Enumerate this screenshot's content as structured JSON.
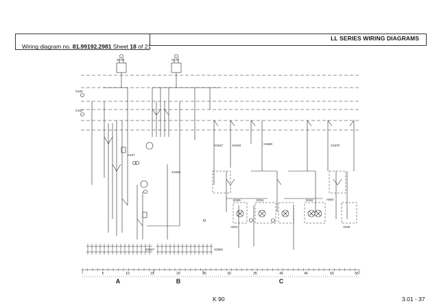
{
  "header": {
    "series_title": "LL SERIES WIRING DIAGRAMS",
    "diagram_prefix": "Wiring diagram no.",
    "diagram_number": "81.99192.2981",
    "sheet_prefix": "Sheet",
    "sheet_number": "18",
    "sheet_suffix": "of 21"
  },
  "connector_labels": {
    "left_top": "X100",
    "left_bottom": "X102",
    "top_a": "X178",
    "top_b": "X179"
  },
  "device_labels": {
    "a437": "A437",
    "a531": "A531",
    "a532": "A532",
    "a502": "A502",
    "x1547": "X1547",
    "x1536": "X1536",
    "x1548": "X1548",
    "x1560": "X1560",
    "x1570": "X1570",
    "e260": "E260",
    "e261": "E261",
    "e262": "E262",
    "x2547": "X2547",
    "x2552": "X2552"
  },
  "scale": {
    "ticks": [
      "5",
      "10",
      "15",
      "20",
      "25",
      "30",
      "35",
      "40",
      "45",
      "50",
      "55"
    ],
    "sections": [
      "A",
      "B",
      "C"
    ]
  },
  "footer": {
    "model": "K 90",
    "page": "3.01 - 37"
  }
}
